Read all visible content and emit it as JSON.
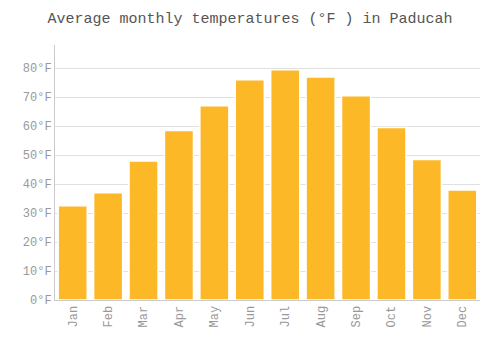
{
  "chart_data": {
    "type": "bar",
    "title": "Average monthly temperatures (°F ) in Paducah",
    "categories": [
      "Jan",
      "Feb",
      "Mar",
      "Apr",
      "May",
      "Jun",
      "Jul",
      "Aug",
      "Sep",
      "Oct",
      "Nov",
      "Dec"
    ],
    "values": [
      32.5,
      37.0,
      48.0,
      58.5,
      67.0,
      76.0,
      79.5,
      77.0,
      70.5,
      59.5,
      48.5,
      38.0
    ],
    "color": "#FDB827",
    "ylim": [
      0,
      88
    ],
    "yticks": [
      {
        "value": 0,
        "label": "0°F"
      },
      {
        "value": 10,
        "label": "10°F"
      },
      {
        "value": 20,
        "label": "20°F"
      },
      {
        "value": 30,
        "label": "30°F"
      },
      {
        "value": 40,
        "label": "40°F"
      },
      {
        "value": 50,
        "label": "50°F"
      },
      {
        "value": 60,
        "label": "60°F"
      },
      {
        "value": 70,
        "label": "70°F"
      },
      {
        "value": 80,
        "label": "80°F"
      }
    ],
    "grid": true
  }
}
